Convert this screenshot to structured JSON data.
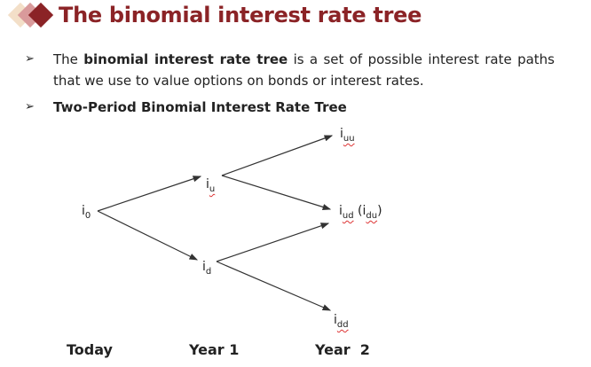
{
  "title": "The binomial interest rate tree",
  "colors": {
    "title": "#8b2326",
    "diamond_light": "#f3dfc8",
    "diamond_mid": "#d99a9b",
    "diamond_dark": "#8b2326"
  },
  "bullets": [
    {
      "icon": "arrowhead-bullet-icon",
      "pre": "The ",
      "bold": "binomial interest rate tree",
      "post": " is a set of possible interest rate paths that we use to value options on bonds or interest rates."
    },
    {
      "icon": "arrowhead-bullet-icon",
      "bold": "Two-Period Binomial Interest Rate Tree"
    }
  ],
  "tree": {
    "nodes": {
      "i0": {
        "base": "i",
        "sub": "0"
      },
      "iu": {
        "base": "i",
        "sub": "u"
      },
      "id": {
        "base": "i",
        "sub": "d"
      },
      "iuu": {
        "base": "i",
        "sub": "uu"
      },
      "iud": {
        "base": "i",
        "sub": "ud",
        "extra_open": " (i",
        "extra_sub": "du",
        "extra_close": ")"
      },
      "idd": {
        "base": "i",
        "sub": "dd"
      }
    },
    "periods": [
      "Today",
      "Year 1",
      "Year  2"
    ]
  }
}
